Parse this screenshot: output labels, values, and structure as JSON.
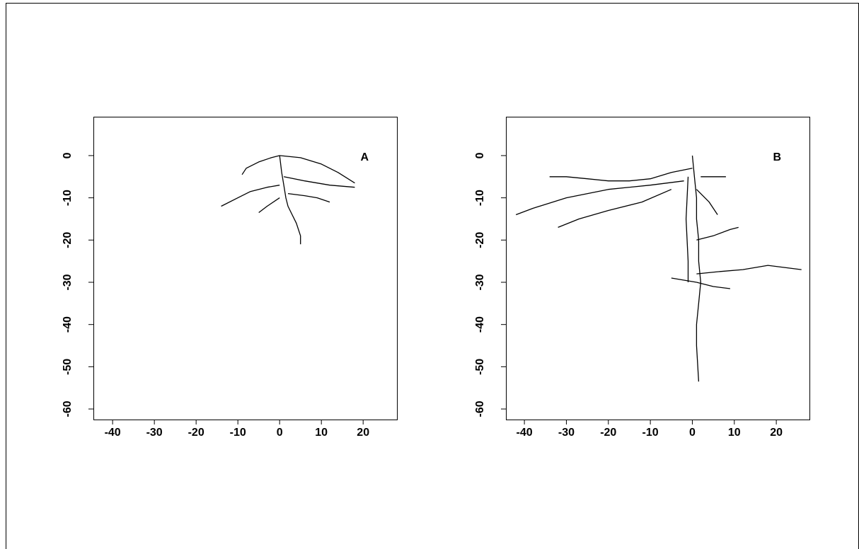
{
  "chart_data": [
    {
      "type": "line",
      "annotation": "A",
      "xlim": [
        -44.6,
        28.1
      ],
      "ylim": [
        -62.5,
        9.2
      ],
      "xticks": [
        -40,
        -30,
        -20,
        -10,
        0,
        10,
        20
      ],
      "yticks": [
        0,
        -10,
        -20,
        -30,
        -40,
        -50,
        -60
      ],
      "series": [
        {
          "color": "#000000",
          "x": [
            0,
            0.5,
            1,
            1.5,
            2,
            3,
            4,
            5,
            5
          ],
          "values": [
            0,
            -4,
            -7,
            -10,
            -12,
            -14,
            -16,
            -19,
            -21
          ]
        },
        {
          "color": "#000000",
          "x": [
            0,
            -2,
            -5,
            -8,
            -9
          ],
          "values": [
            0,
            -0.5,
            -1.5,
            -3,
            -4.5
          ]
        },
        {
          "color": "#000000",
          "x": [
            0,
            5,
            10,
            14,
            18
          ],
          "values": [
            0,
            -0.5,
            -2,
            -4,
            -6.5
          ]
        },
        {
          "color": "#000000",
          "x": [
            1,
            6,
            12,
            18
          ],
          "values": [
            -5,
            -6,
            -7,
            -7.5
          ]
        },
        {
          "color": "#000000",
          "x": [
            0,
            -3,
            -7,
            -10,
            -14
          ],
          "values": [
            -7,
            -7.5,
            -8.5,
            -10,
            -12
          ]
        },
        {
          "color": "#000000",
          "x": [
            2,
            6,
            9,
            12
          ],
          "values": [
            -9,
            -9.5,
            -10,
            -11
          ]
        },
        {
          "color": "#000000",
          "x": [
            0,
            -3,
            -5
          ],
          "values": [
            -10,
            -12,
            -13.5
          ]
        }
      ]
    },
    {
      "type": "line",
      "annotation": "B",
      "xlim": [
        -44.4,
        27.9
      ],
      "ylim": [
        -62.5,
        9.2
      ],
      "xticks": [
        -40,
        -30,
        -20,
        -10,
        0,
        10,
        20
      ],
      "yticks": [
        0,
        -10,
        -20,
        -30,
        -40,
        -50,
        -60
      ],
      "series": [
        {
          "color": "#000000",
          "x": [
            0,
            0.5,
            1,
            1,
            1.5,
            1.5,
            2,
            1.5,
            1,
            1,
            1.5
          ],
          "values": [
            0,
            -5,
            -10,
            -15,
            -20,
            -25,
            -30,
            -35,
            -40,
            -45,
            -53.5
          ]
        },
        {
          "color": "#000000",
          "x": [
            0,
            -5,
            -10,
            -15,
            -20,
            -25,
            -30,
            -34
          ],
          "values": [
            -3,
            -4,
            -5.5,
            -6,
            -6,
            -5.5,
            -5,
            -5
          ]
        },
        {
          "color": "#000000",
          "x": [
            -2,
            -10,
            -20,
            -30,
            -38,
            -42
          ],
          "values": [
            -6,
            -7,
            -8,
            -10,
            -12.5,
            -14
          ]
        },
        {
          "color": "#000000",
          "x": [
            -5,
            -12,
            -20,
            -27,
            -32
          ],
          "values": [
            -8,
            -11,
            -13,
            -15,
            -17
          ]
        },
        {
          "color": "#000000",
          "x": [
            2,
            5,
            8
          ],
          "values": [
            -5,
            -5,
            -5
          ]
        },
        {
          "color": "#000000",
          "x": [
            1,
            4,
            6
          ],
          "values": [
            -8,
            -11,
            -14
          ]
        },
        {
          "color": "#000000",
          "x": [
            1,
            5,
            9,
            11
          ],
          "values": [
            -20,
            -19,
            -17.5,
            -17
          ]
        },
        {
          "color": "#000000",
          "x": [
            1,
            6,
            12,
            18,
            22,
            26
          ],
          "values": [
            -28,
            -27.5,
            -27,
            -26,
            -26.5,
            -27
          ]
        },
        {
          "color": "#000000",
          "x": [
            -5,
            -2,
            1
          ],
          "values": [
            -29,
            -29.5,
            -30
          ]
        },
        {
          "color": "#000000",
          "x": [
            1,
            5,
            9
          ],
          "values": [
            -30,
            -31,
            -31.5
          ]
        },
        {
          "color": "#000000",
          "x": [
            -1,
            -1.5,
            -1,
            -1
          ],
          "values": [
            -5,
            -15,
            -25,
            -30
          ]
        }
      ]
    }
  ]
}
